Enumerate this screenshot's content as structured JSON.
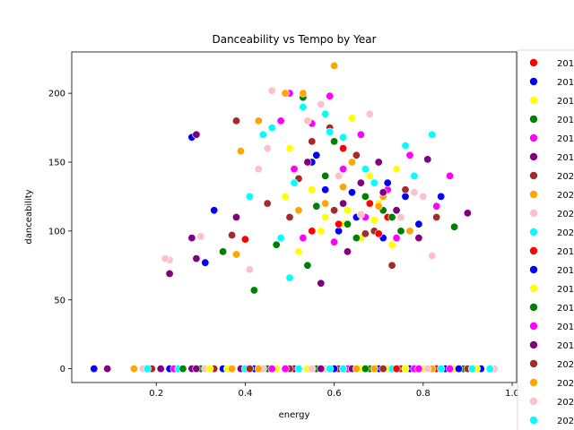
{
  "chart_data": {
    "type": "scatter",
    "title": "Danceability vs Tempo by Year",
    "xlabel": "energy",
    "ylabel": "danceability",
    "xlim": [
      0.01,
      1.01
    ],
    "ylim": [
      -10,
      230
    ],
    "xticks": [
      0.2,
      0.4,
      0.6,
      0.8,
      1.0
    ],
    "xtick_labels": [
      "0.2",
      "0.4",
      "0.6",
      "0.8",
      "1.0"
    ],
    "yticks": [
      0,
      50,
      100,
      150,
      200
    ],
    "ytick_labels": [
      "0",
      "50",
      "100",
      "150",
      "200"
    ],
    "grid": false,
    "legend_position": "right, outside plot, cut off",
    "series": [
      {
        "name": "201",
        "color": "#ff0000",
        "points": [
          [
            0.4,
            94
          ],
          [
            0.55,
            100
          ],
          [
            0.62,
            160
          ],
          [
            0.68,
            120
          ],
          [
            0.72,
            110
          ],
          [
            0.47,
            0
          ],
          [
            0.66,
            0
          ],
          [
            0.83,
            0
          ]
        ]
      },
      {
        "name": "201",
        "color": "#0000ff",
        "points": [
          [
            0.28,
            168
          ],
          [
            0.33,
            115
          ],
          [
            0.31,
            77
          ],
          [
            0.58,
            130
          ],
          [
            0.65,
            110
          ],
          [
            0.71,
            95
          ],
          [
            0.76,
            125
          ],
          [
            0.84,
            125
          ],
          [
            0.55,
            150
          ],
          [
            0.61,
            100
          ],
          [
            0.06,
            0
          ],
          [
            0.23,
            0
          ],
          [
            0.35,
            0
          ],
          [
            0.42,
            0
          ],
          [
            0.57,
            0
          ],
          [
            0.7,
            0
          ],
          [
            0.77,
            0
          ],
          [
            0.81,
            0
          ],
          [
            0.85,
            0
          ],
          [
            0.9,
            0
          ],
          [
            0.93,
            0
          ]
        ]
      },
      {
        "name": "201",
        "color": "#ffff00",
        "points": [
          [
            0.5,
            160
          ],
          [
            0.55,
            130
          ],
          [
            0.62,
            105
          ],
          [
            0.66,
            95
          ],
          [
            0.7,
            120
          ],
          [
            0.73,
            90
          ],
          [
            0.64,
            182
          ],
          [
            0.58,
            110
          ],
          [
            0.52,
            85
          ],
          [
            0.68,
            140
          ],
          [
            0.36,
            0
          ],
          [
            0.47,
            0
          ],
          [
            0.54,
            0
          ],
          [
            0.6,
            0
          ],
          [
            0.66,
            0
          ],
          [
            0.72,
            0
          ],
          [
            0.8,
            0
          ],
          [
            0.87,
            0
          ]
        ]
      },
      {
        "name": "201",
        "color": "#008000",
        "points": [
          [
            0.42,
            57
          ],
          [
            0.35,
            85
          ],
          [
            0.54,
            75
          ],
          [
            0.58,
            140
          ],
          [
            0.63,
            105
          ],
          [
            0.67,
            125
          ],
          [
            0.71,
            115
          ],
          [
            0.75,
            100
          ],
          [
            0.53,
            197
          ],
          [
            0.6,
            165
          ],
          [
            0.87,
            103
          ],
          [
            0.3,
            0
          ],
          [
            0.45,
            0
          ],
          [
            0.56,
            0
          ],
          [
            0.68,
            0
          ],
          [
            0.74,
            0
          ],
          [
            0.89,
            0
          ]
        ]
      },
      {
        "name": "201",
        "color": "#ff00ff",
        "points": [
          [
            0.5,
            200
          ],
          [
            0.55,
            178
          ],
          [
            0.59,
            198
          ],
          [
            0.62,
            145
          ],
          [
            0.67,
            110
          ],
          [
            0.72,
            130
          ],
          [
            0.77,
            155
          ],
          [
            0.86,
            140
          ],
          [
            0.48,
            180
          ],
          [
            0.53,
            95
          ],
          [
            0.24,
            0
          ],
          [
            0.46,
            0
          ],
          [
            0.59,
            0
          ],
          [
            0.63,
            0
          ],
          [
            0.78,
            0
          ],
          [
            0.86,
            0
          ]
        ]
      },
      {
        "name": "201",
        "color": "#800080",
        "points": [
          [
            0.23,
            69
          ],
          [
            0.29,
            80
          ],
          [
            0.28,
            95
          ],
          [
            0.38,
            110
          ],
          [
            0.57,
            62
          ],
          [
            0.62,
            120
          ],
          [
            0.66,
            135
          ],
          [
            0.7,
            150
          ],
          [
            0.74,
            115
          ],
          [
            0.81,
            152
          ],
          [
            0.9,
            113
          ],
          [
            0.09,
            0
          ],
          [
            0.21,
            0
          ],
          [
            0.28,
            0
          ],
          [
            0.39,
            0
          ],
          [
            0.51,
            0
          ],
          [
            0.64,
            0
          ],
          [
            0.76,
            0
          ],
          [
            0.88,
            0
          ]
        ]
      },
      {
        "name": "202",
        "color": "#a52a2a",
        "points": [
          [
            0.38,
            180
          ],
          [
            0.37,
            97
          ],
          [
            0.45,
            120
          ],
          [
            0.52,
            138
          ],
          [
            0.6,
            115
          ],
          [
            0.65,
            155
          ],
          [
            0.69,
            100
          ],
          [
            0.73,
            75
          ],
          [
            0.83,
            110
          ],
          [
            0.55,
            165
          ],
          [
            0.19,
            0
          ],
          [
            0.33,
            0
          ],
          [
            0.5,
            0
          ],
          [
            0.61,
            0
          ],
          [
            0.75,
            0
          ],
          [
            0.9,
            0
          ]
        ]
      },
      {
        "name": "202",
        "color": "#ffa500",
        "points": [
          [
            0.38,
            83
          ],
          [
            0.43,
            180
          ],
          [
            0.49,
            200
          ],
          [
            0.53,
            200
          ],
          [
            0.6,
            220
          ],
          [
            0.58,
            120
          ],
          [
            0.64,
            150
          ],
          [
            0.71,
            125
          ],
          [
            0.77,
            100
          ],
          [
            0.39,
            158
          ],
          [
            0.15,
            0
          ],
          [
            0.37,
            0
          ],
          [
            0.52,
            0
          ],
          [
            0.69,
            0
          ],
          [
            0.82,
            0
          ]
        ]
      },
      {
        "name": "202",
        "color": "#ffc0cb",
        "points": [
          [
            0.23,
            79
          ],
          [
            0.22,
            80
          ],
          [
            0.43,
            145
          ],
          [
            0.46,
            202
          ],
          [
            0.54,
            180
          ],
          [
            0.61,
            140
          ],
          [
            0.68,
            185
          ],
          [
            0.75,
            110
          ],
          [
            0.8,
            125
          ],
          [
            0.82,
            82
          ],
          [
            0.3,
            96
          ],
          [
            0.41,
            72
          ],
          [
            0.17,
            0
          ],
          [
            0.31,
            0
          ],
          [
            0.44,
            0
          ],
          [
            0.58,
            0
          ],
          [
            0.71,
            0
          ],
          [
            0.96,
            0
          ]
        ]
      },
      {
        "name": "202",
        "color": "#00ffff",
        "points": [
          [
            0.41,
            125
          ],
          [
            0.44,
            170
          ],
          [
            0.46,
            175
          ],
          [
            0.5,
            66
          ],
          [
            0.53,
            190
          ],
          [
            0.58,
            185
          ],
          [
            0.62,
            168
          ],
          [
            0.69,
            135
          ],
          [
            0.76,
            162
          ],
          [
            0.82,
            170
          ],
          [
            0.48,
            95
          ],
          [
            0.18,
            0
          ],
          [
            0.25,
            0
          ],
          [
            0.4,
            0
          ],
          [
            0.52,
            0
          ],
          [
            0.62,
            0
          ],
          [
            0.73,
            0
          ],
          [
            0.84,
            0
          ],
          [
            0.95,
            0
          ]
        ]
      },
      {
        "name": "201",
        "color": "#ff0000",
        "points": [
          [
            0.61,
            105
          ],
          [
            0.7,
            98
          ],
          [
            0.74,
            0
          ]
        ]
      },
      {
        "name": "201",
        "color": "#0000ff",
        "points": [
          [
            0.56,
            155
          ],
          [
            0.64,
            128
          ],
          [
            0.72,
            135
          ],
          [
            0.79,
            105
          ],
          [
            0.6,
            0
          ],
          [
            0.88,
            0
          ]
        ]
      },
      {
        "name": "201",
        "color": "#ffff00",
        "points": [
          [
            0.49,
            125
          ],
          [
            0.57,
            100
          ],
          [
            0.63,
            115
          ],
          [
            0.69,
            108
          ],
          [
            0.74,
            145
          ],
          [
            0.32,
            0
          ],
          [
            0.41,
            0
          ],
          [
            0.76,
            0
          ],
          [
            0.92,
            0
          ]
        ]
      },
      {
        "name": "201",
        "color": "#008000",
        "points": [
          [
            0.47,
            90
          ],
          [
            0.56,
            118
          ],
          [
            0.65,
            95
          ],
          [
            0.73,
            110
          ],
          [
            0.26,
            0
          ],
          [
            0.67,
            0
          ]
        ]
      },
      {
        "name": "201",
        "color": "#ff00ff",
        "points": [
          [
            0.51,
            145
          ],
          [
            0.6,
            92
          ],
          [
            0.66,
            170
          ],
          [
            0.74,
            95
          ],
          [
            0.83,
            118
          ],
          [
            0.49,
            0
          ],
          [
            0.79,
            0
          ]
        ]
      },
      {
        "name": "201",
        "color": "#800080",
        "points": [
          [
            0.29,
            170
          ],
          [
            0.54,
            150
          ],
          [
            0.63,
            85
          ],
          [
            0.71,
            128
          ],
          [
            0.79,
            95
          ],
          [
            0.29,
            0
          ],
          [
            0.57,
            0
          ]
        ]
      },
      {
        "name": "202",
        "color": "#a52a2a",
        "points": [
          [
            0.5,
            110
          ],
          [
            0.59,
            175
          ],
          [
            0.67,
            98
          ],
          [
            0.76,
            130
          ],
          [
            0.41,
            0
          ],
          [
            0.71,
            0
          ]
        ]
      },
      {
        "name": "202",
        "color": "#ffa500",
        "points": [
          [
            0.52,
            115
          ],
          [
            0.62,
            132
          ],
          [
            0.7,
            118
          ],
          [
            0.43,
            0
          ],
          [
            0.65,
            0
          ]
        ]
      },
      {
        "name": "202",
        "color": "#ffc0cb",
        "points": [
          [
            0.45,
            160
          ],
          [
            0.57,
            192
          ],
          [
            0.66,
            112
          ],
          [
            0.78,
            128
          ],
          [
            0.55,
            0
          ],
          [
            0.81,
            0
          ]
        ]
      },
      {
        "name": "202",
        "color": "#00ffff",
        "points": [
          [
            0.51,
            135
          ],
          [
            0.59,
            172
          ],
          [
            0.67,
            145
          ],
          [
            0.78,
            140
          ],
          [
            0.59,
            0
          ],
          [
            0.91,
            0
          ]
        ]
      }
    ]
  }
}
